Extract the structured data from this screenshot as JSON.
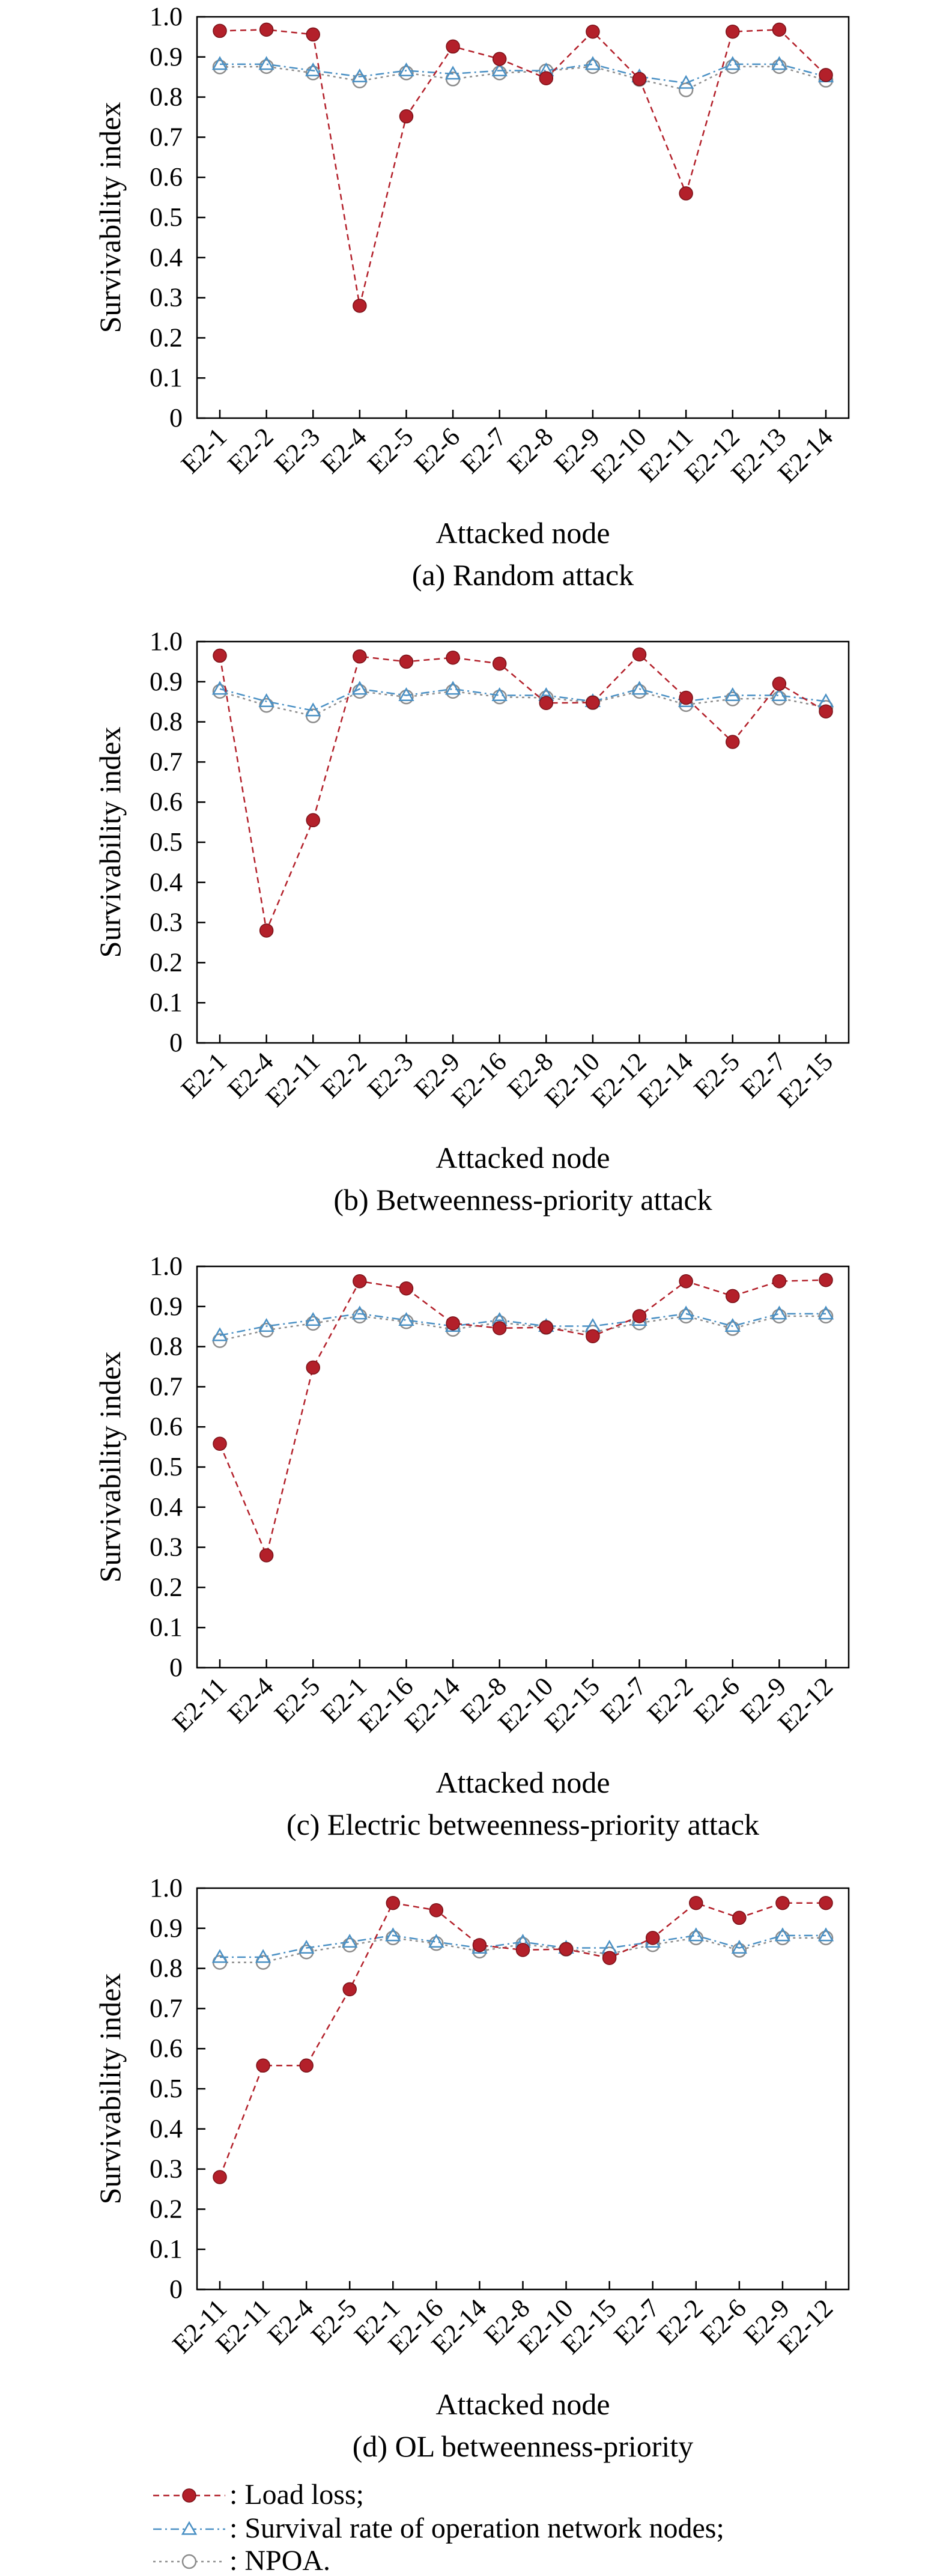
{
  "y_axis_label": "Survivability index",
  "x_axis_label": "Attacked node",
  "legend": {
    "entries": [
      {
        "label": ": Load loss;",
        "color": "#b3202a",
        "marker": "filled-circle",
        "dash": "dashed"
      },
      {
        "label": ": Survival rate of operation network nodes;",
        "color": "#4a90c4",
        "marker": "open-triangle",
        "dash": "dash-dot"
      },
      {
        "label": ": NPOA.",
        "color": "#8c8c8c",
        "marker": "open-circle",
        "dash": "dotted"
      }
    ]
  },
  "chart_data": [
    {
      "type": "line",
      "title": "(a) Random attack",
      "xlabel": "Attacked node",
      "ylabel": "Survivability index",
      "ylim": [
        0,
        1.0
      ],
      "yticks": [
        "0",
        "0.1",
        "0.2",
        "0.3",
        "0.4",
        "0.5",
        "0.6",
        "0.7",
        "0.8",
        "0.9",
        "1.0"
      ],
      "categories": [
        "E2-1",
        "E2-2",
        "E2-3",
        "E2-4",
        "E2-5",
        "E2-6",
        "E2-7",
        "E2-8",
        "E2-9",
        "E2-10",
        "E2-11",
        "E2-12",
        "E2-13",
        "E2-14"
      ],
      "series": [
        {
          "name": "Load loss",
          "values": [
            0.965,
            0.968,
            0.956,
            0.28,
            0.752,
            0.926,
            0.895,
            0.847,
            0.963,
            0.845,
            0.56,
            0.963,
            0.968,
            0.855
          ]
        },
        {
          "name": "Survival rate of operation network nodes",
          "values": [
            0.882,
            0.882,
            0.866,
            0.851,
            0.866,
            0.858,
            0.866,
            0.866,
            0.882,
            0.851,
            0.835,
            0.882,
            0.882,
            0.851
          ]
        },
        {
          "name": "NPOA",
          "values": [
            0.875,
            0.876,
            0.86,
            0.84,
            0.86,
            0.845,
            0.86,
            0.865,
            0.876,
            0.844,
            0.818,
            0.876,
            0.876,
            0.842
          ]
        }
      ]
    },
    {
      "type": "line",
      "title": "(b) Betweenness-priority attack",
      "xlabel": "Attacked node",
      "ylabel": "Survivability index",
      "ylim": [
        0,
        1.0
      ],
      "yticks": [
        "0",
        "0.1",
        "0.2",
        "0.3",
        "0.4",
        "0.5",
        "0.6",
        "0.7",
        "0.8",
        "0.9",
        "1.0"
      ],
      "categories": [
        "E2-1",
        "E2-4",
        "E2-11",
        "E2-2",
        "E2-3",
        "E2-9",
        "E2-16",
        "E2-8",
        "E2-10",
        "E2-12",
        "E2-14",
        "E2-5",
        "E2-7",
        "E2-15"
      ],
      "series": [
        {
          "name": "Load loss",
          "values": [
            0.965,
            0.28,
            0.555,
            0.963,
            0.95,
            0.96,
            0.945,
            0.847,
            0.848,
            0.968,
            0.86,
            0.75,
            0.895,
            0.826
          ]
        },
        {
          "name": "Survival rate of operation network nodes",
          "values": [
            0.882,
            0.851,
            0.828,
            0.882,
            0.866,
            0.882,
            0.866,
            0.866,
            0.851,
            0.882,
            0.851,
            0.866,
            0.866,
            0.851
          ]
        },
        {
          "name": "NPOA",
          "values": [
            0.876,
            0.841,
            0.815,
            0.876,
            0.862,
            0.876,
            0.862,
            0.86,
            0.848,
            0.876,
            0.843,
            0.857,
            0.859,
            0.836
          ]
        }
      ]
    },
    {
      "type": "line",
      "title": "(c) Electric betweenness-priority attack",
      "xlabel": "Attacked node",
      "ylabel": "Survivability index",
      "ylim": [
        0,
        1.0
      ],
      "yticks": [
        "0",
        "0.1",
        "0.2",
        "0.3",
        "0.4",
        "0.5",
        "0.6",
        "0.7",
        "0.8",
        "0.9",
        "1.0"
      ],
      "categories": [
        "E2-11",
        "E2-4",
        "E2-5",
        "E2-1",
        "E2-16",
        "E2-14",
        "E2-8",
        "E2-10",
        "E2-15",
        "E2-7",
        "E2-2",
        "E2-6",
        "E2-9",
        "E2-12"
      ],
      "series": [
        {
          "name": "Load loss",
          "values": [
            0.558,
            0.28,
            0.748,
            0.963,
            0.945,
            0.858,
            0.846,
            0.848,
            0.826,
            0.876,
            0.963,
            0.926,
            0.963,
            0.966
          ]
        },
        {
          "name": "Survival rate of operation network nodes",
          "values": [
            0.828,
            0.851,
            0.866,
            0.882,
            0.866,
            0.851,
            0.866,
            0.851,
            0.851,
            0.866,
            0.882,
            0.851,
            0.882,
            0.882
          ]
        },
        {
          "name": "NPOA",
          "values": [
            0.815,
            0.841,
            0.858,
            0.876,
            0.862,
            0.843,
            0.86,
            0.848,
            0.836,
            0.859,
            0.876,
            0.845,
            0.876,
            0.876
          ]
        }
      ]
    },
    {
      "type": "line",
      "title": "(d) OL betweenness-priority",
      "xlabel": "Attacked node",
      "ylabel": "Survivability index",
      "ylim": [
        0,
        1.0
      ],
      "yticks": [
        "0",
        "0.1",
        "0.2",
        "0.3",
        "0.4",
        "0.5",
        "0.6",
        "0.7",
        "0.8",
        "0.9",
        "1.0"
      ],
      "categories": [
        "E2-11",
        "E2-11",
        "E2-4",
        "E2-5",
        "E2-1",
        "E2-16",
        "E2-14",
        "E2-8",
        "E2-10",
        "E2-15",
        "E2-7",
        "E2-2",
        "E2-6",
        "E2-9",
        "E2-12"
      ],
      "series": [
        {
          "name": "Load loss",
          "values": [
            0.28,
            0.558,
            0.558,
            0.748,
            0.963,
            0.945,
            0.858,
            0.846,
            0.848,
            0.826,
            0.876,
            0.963,
            0.926,
            0.963,
            0.963
          ]
        },
        {
          "name": "Survival rate of operation network nodes",
          "values": [
            0.828,
            0.828,
            0.851,
            0.866,
            0.882,
            0.866,
            0.851,
            0.866,
            0.851,
            0.851,
            0.866,
            0.882,
            0.851,
            0.882,
            0.882
          ]
        },
        {
          "name": "NPOA",
          "values": [
            0.815,
            0.815,
            0.841,
            0.858,
            0.876,
            0.862,
            0.843,
            0.86,
            0.848,
            0.836,
            0.859,
            0.876,
            0.845,
            0.876,
            0.876
          ]
        }
      ]
    }
  ]
}
